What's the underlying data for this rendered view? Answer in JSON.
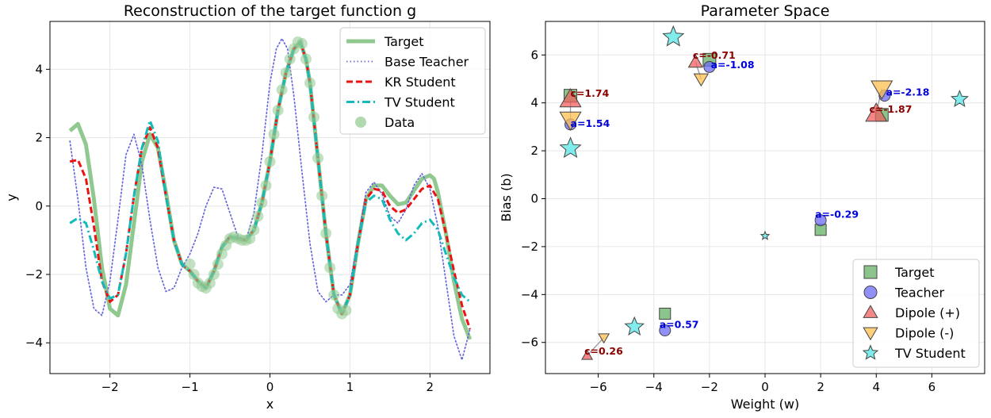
{
  "chart_data": [
    {
      "type": "line",
      "title": "Reconstruction of the target function g",
      "xlabel": "x",
      "ylabel": "y",
      "xlim": [
        -2.75,
        2.75
      ],
      "ylim": [
        -4.9,
        5.4
      ],
      "xticks": [
        -2,
        -1,
        0,
        1,
        2
      ],
      "yticks": [
        -4,
        -2,
        0,
        2,
        4
      ],
      "xtick_labels": [
        "−2",
        "−1",
        "0",
        "1",
        "2"
      ],
      "ytick_labels": [
        "−4",
        "−2",
        "0",
        "2",
        "4"
      ],
      "grid": true,
      "legend_position": "top-right",
      "series": [
        {
          "name": "Target",
          "style": "solid",
          "color": "#8fc98f",
          "x": [
            -2.5,
            -2.4,
            -2.3,
            -2.2,
            -2.1,
            -2.0,
            -1.9,
            -1.8,
            -1.7,
            -1.6,
            -1.5,
            -1.4,
            -1.3,
            -1.2,
            -1.1,
            -1.0,
            -0.9,
            -0.8,
            -0.7,
            -0.6,
            -0.5,
            -0.4,
            -0.3,
            -0.2,
            -0.1,
            0.0,
            0.1,
            0.2,
            0.3,
            0.38,
            0.45,
            0.5,
            0.6,
            0.7,
            0.8,
            0.9,
            1.0,
            1.1,
            1.2,
            1.3,
            1.4,
            1.5,
            1.6,
            1.7,
            1.8,
            1.9,
            2.0,
            2.05,
            2.1,
            2.2,
            2.3,
            2.4,
            2.5
          ],
          "y": [
            2.2,
            2.4,
            1.8,
            0.2,
            -1.8,
            -3.0,
            -3.2,
            -2.3,
            -0.5,
            1.3,
            2.1,
            1.7,
            0.4,
            -1.0,
            -1.7,
            -1.9,
            -2.2,
            -2.4,
            -1.9,
            -1.2,
            -0.9,
            -0.95,
            -1.0,
            -0.7,
            0.1,
            1.3,
            2.8,
            3.9,
            4.6,
            4.8,
            4.3,
            3.6,
            1.4,
            -0.8,
            -2.6,
            -3.15,
            -2.6,
            -1.1,
            0.2,
            0.6,
            0.6,
            0.3,
            0.05,
            0.1,
            0.45,
            0.8,
            0.9,
            0.8,
            0.4,
            -0.8,
            -2.2,
            -3.3,
            -3.9
          ]
        },
        {
          "name": "Base Teacher",
          "style": "dotted",
          "color": "#6666dd",
          "x": [
            -2.5,
            -2.4,
            -2.3,
            -2.2,
            -2.1,
            -2.0,
            -1.9,
            -1.8,
            -1.7,
            -1.6,
            -1.5,
            -1.4,
            -1.3,
            -1.2,
            -1.1,
            -1.0,
            -0.9,
            -0.8,
            -0.7,
            -0.6,
            -0.5,
            -0.4,
            -0.3,
            -0.2,
            -0.1,
            0.0,
            0.08,
            0.15,
            0.22,
            0.3,
            0.4,
            0.5,
            0.6,
            0.7,
            0.8,
            0.9,
            1.0,
            1.1,
            1.2,
            1.3,
            1.4,
            1.5,
            1.6,
            1.7,
            1.8,
            1.9,
            2.0,
            2.1,
            2.2,
            2.3,
            2.4,
            2.5
          ],
          "y": [
            1.9,
            0.2,
            -1.8,
            -3.0,
            -3.2,
            -2.2,
            -0.4,
            1.5,
            2.1,
            1.2,
            -0.4,
            -1.8,
            -2.5,
            -2.4,
            -1.8,
            -1.4,
            -0.8,
            0.0,
            0.55,
            0.5,
            -0.2,
            -0.9,
            -1.0,
            -0.2,
            1.5,
            3.6,
            4.6,
            4.9,
            4.6,
            3.2,
            1.0,
            -1.1,
            -2.5,
            -2.8,
            -2.6,
            -2.6,
            -2.3,
            -1.0,
            0.4,
            0.7,
            0.35,
            -0.3,
            -0.5,
            -0.1,
            0.6,
            0.95,
            0.5,
            -0.6,
            -2.2,
            -3.8,
            -4.5,
            -3.6
          ]
        },
        {
          "name": "KR Student",
          "style": "dashed",
          "color": "#ee1111",
          "x": [
            -2.5,
            -2.4,
            -2.3,
            -2.2,
            -2.1,
            -2.0,
            -1.9,
            -1.8,
            -1.7,
            -1.6,
            -1.5,
            -1.4,
            -1.3,
            -1.2,
            -1.1,
            -1.0,
            -0.9,
            -0.8,
            -0.7,
            -0.6,
            -0.5,
            -0.4,
            -0.3,
            -0.2,
            -0.1,
            0.0,
            0.1,
            0.2,
            0.3,
            0.38,
            0.45,
            0.5,
            0.6,
            0.7,
            0.8,
            0.9,
            1.0,
            1.1,
            1.2,
            1.3,
            1.4,
            1.5,
            1.6,
            1.7,
            1.8,
            1.9,
            2.0,
            2.1,
            2.2,
            2.3,
            2.4,
            2.5
          ],
          "y": [
            1.3,
            1.35,
            0.8,
            -0.6,
            -2.2,
            -2.8,
            -2.6,
            -1.4,
            0.3,
            1.7,
            2.3,
            1.7,
            0.3,
            -1.0,
            -1.7,
            -1.9,
            -2.2,
            -2.4,
            -1.9,
            -1.2,
            -0.9,
            -0.95,
            -1.0,
            -0.7,
            0.1,
            1.3,
            2.8,
            3.9,
            4.6,
            4.8,
            4.3,
            3.6,
            1.4,
            -0.8,
            -2.6,
            -3.15,
            -2.6,
            -1.1,
            0.2,
            0.5,
            0.45,
            0.0,
            -0.2,
            -0.1,
            0.2,
            0.5,
            0.6,
            0.2,
            -0.8,
            -1.9,
            -2.9,
            -3.6
          ]
        },
        {
          "name": "TV Student",
          "style": "dashdot",
          "color": "#11bbbb",
          "x": [
            -2.5,
            -2.4,
            -2.3,
            -2.2,
            -2.1,
            -2.0,
            -1.9,
            -1.8,
            -1.7,
            -1.6,
            -1.5,
            -1.4,
            -1.3,
            -1.2,
            -1.1,
            -1.0,
            -0.9,
            -0.8,
            -0.7,
            -0.6,
            -0.5,
            -0.4,
            -0.3,
            -0.2,
            -0.1,
            0.0,
            0.1,
            0.2,
            0.3,
            0.38,
            0.45,
            0.5,
            0.6,
            0.7,
            0.8,
            0.9,
            1.0,
            1.1,
            1.2,
            1.3,
            1.4,
            1.5,
            1.6,
            1.7,
            1.8,
            1.9,
            2.0,
            2.1,
            2.2,
            2.3,
            2.4,
            2.5
          ],
          "y": [
            -0.5,
            -0.35,
            -0.5,
            -1.3,
            -2.2,
            -2.7,
            -2.6,
            -1.4,
            0.3,
            1.7,
            2.5,
            1.9,
            0.3,
            -1.0,
            -1.7,
            -1.9,
            -2.2,
            -2.4,
            -1.9,
            -1.2,
            -0.9,
            -0.95,
            -1.0,
            -0.7,
            0.1,
            1.3,
            2.8,
            3.9,
            4.6,
            4.8,
            4.3,
            3.6,
            1.4,
            -0.8,
            -2.6,
            -3.15,
            -2.6,
            -1.1,
            0.1,
            0.3,
            0.2,
            -0.4,
            -0.8,
            -1.0,
            -0.8,
            -0.5,
            -0.4,
            -0.7,
            -1.4,
            -2.1,
            -2.6,
            -2.8
          ]
        },
        {
          "name": "Data",
          "style": "scatter",
          "color": "#8fc98f",
          "x": [
            -1.0,
            -0.95,
            -0.9,
            -0.85,
            -0.8,
            -0.75,
            -0.7,
            -0.65,
            -0.6,
            -0.55,
            -0.5,
            -0.45,
            -0.4,
            -0.35,
            -0.3,
            -0.25,
            -0.2,
            -0.15,
            -0.1,
            -0.05,
            0.0,
            0.05,
            0.1,
            0.15,
            0.2,
            0.25,
            0.3,
            0.35,
            0.4,
            0.45,
            0.5,
            0.55,
            0.6,
            0.65,
            0.7,
            0.75,
            0.8,
            0.85,
            0.9,
            0.95
          ],
          "y": [
            -1.7,
            -2.0,
            -2.25,
            -2.35,
            -2.4,
            -2.25,
            -2.0,
            -1.7,
            -1.4,
            -1.15,
            -0.95,
            -0.9,
            -0.95,
            -1.0,
            -1.0,
            -0.95,
            -0.7,
            -0.3,
            0.1,
            0.6,
            1.3,
            2.1,
            2.8,
            3.4,
            3.9,
            4.3,
            4.6,
            4.8,
            4.75,
            4.3,
            3.6,
            2.6,
            1.4,
            0.3,
            -0.8,
            -1.8,
            -2.6,
            -3.0,
            -3.15,
            -3.05
          ]
        }
      ]
    },
    {
      "type": "scatter",
      "title": "Parameter Space",
      "xlabel": "Weight (w)",
      "ylabel": "Bias (b)",
      "xlim": [
        -7.9,
        7.9
      ],
      "ylim": [
        -7.3,
        7.4
      ],
      "xticks": [
        -6,
        -4,
        -2,
        0,
        2,
        4,
        6
      ],
      "yticks": [
        -6,
        -4,
        -2,
        0,
        2,
        4,
        6
      ],
      "xtick_labels": [
        "−6",
        "−4",
        "−2",
        "0",
        "2",
        "4",
        "6"
      ],
      "ytick_labels": [
        "−6",
        "−4",
        "−2",
        "0",
        "2",
        "4",
        "6"
      ],
      "grid": true,
      "legend_position": "bottom-right",
      "series": [
        {
          "name": "Target",
          "marker": "square",
          "color": "#66b266",
          "points": [
            [
              -7.0,
              4.3
            ],
            [
              -2.0,
              5.8
            ],
            [
              4.2,
              3.5
            ],
            [
              -3.6,
              -4.8
            ],
            [
              2.0,
              -1.3
            ]
          ]
        },
        {
          "name": "Teacher",
          "marker": "circle",
          "color": "#6b6bf5",
          "points": [
            [
              -7.0,
              3.1
            ],
            [
              -2.0,
              5.5
            ],
            [
              4.3,
              4.3
            ],
            [
              -3.6,
              -5.5
            ],
            [
              2.0,
              -0.9
            ]
          ]
        },
        {
          "name": "Dipole (+)",
          "marker": "triangle-up",
          "color": "#f06060",
          "points": [
            [
              -7.0,
              4.15
            ],
            [
              -2.5,
              5.7
            ],
            [
              4.0,
              3.55
            ],
            [
              -6.4,
              -6.55
            ]
          ]
        },
        {
          "name": "Dipole (-)",
          "marker": "triangle-down",
          "color": "#ffbf50",
          "points": [
            [
              -7.0,
              3.3
            ],
            [
              -2.3,
              5.0
            ],
            [
              4.2,
              4.6
            ],
            [
              -5.8,
              -5.8
            ]
          ]
        },
        {
          "name": "TV Student",
          "marker": "star",
          "color": "#55e5e5",
          "points": [
            [
              -7.0,
              2.1
            ],
            [
              -3.3,
              6.75
            ],
            [
              7.0,
              4.15
            ],
            [
              -4.7,
              -5.35
            ],
            [
              0.0,
              -1.55
            ]
          ]
        }
      ],
      "annotations": [
        {
          "text": "c=1.74",
          "x": -7.0,
          "y": 4.25,
          "color": "#8b0000"
        },
        {
          "text": "a=1.54",
          "x": -7.0,
          "y": 3.0,
          "color": "#0000dd"
        },
        {
          "text": "c=-0.71",
          "x": -2.6,
          "y": 5.85,
          "color": "#8b0000"
        },
        {
          "text": "a=-1.08",
          "x": -1.95,
          "y": 5.45,
          "color": "#0000dd"
        },
        {
          "text": "a=-2.18",
          "x": 4.35,
          "y": 4.3,
          "color": "#0000dd"
        },
        {
          "text": "c=-1.87",
          "x": 3.75,
          "y": 3.6,
          "color": "#8b0000"
        },
        {
          "text": "a=-0.29",
          "x": 1.8,
          "y": -0.8,
          "color": "#0000dd"
        },
        {
          "text": "a=0.57",
          "x": -3.8,
          "y": -5.4,
          "color": "#0000dd"
        },
        {
          "text": "c=0.26",
          "x": -6.5,
          "y": -6.5,
          "color": "#8b0000"
        }
      ]
    }
  ]
}
